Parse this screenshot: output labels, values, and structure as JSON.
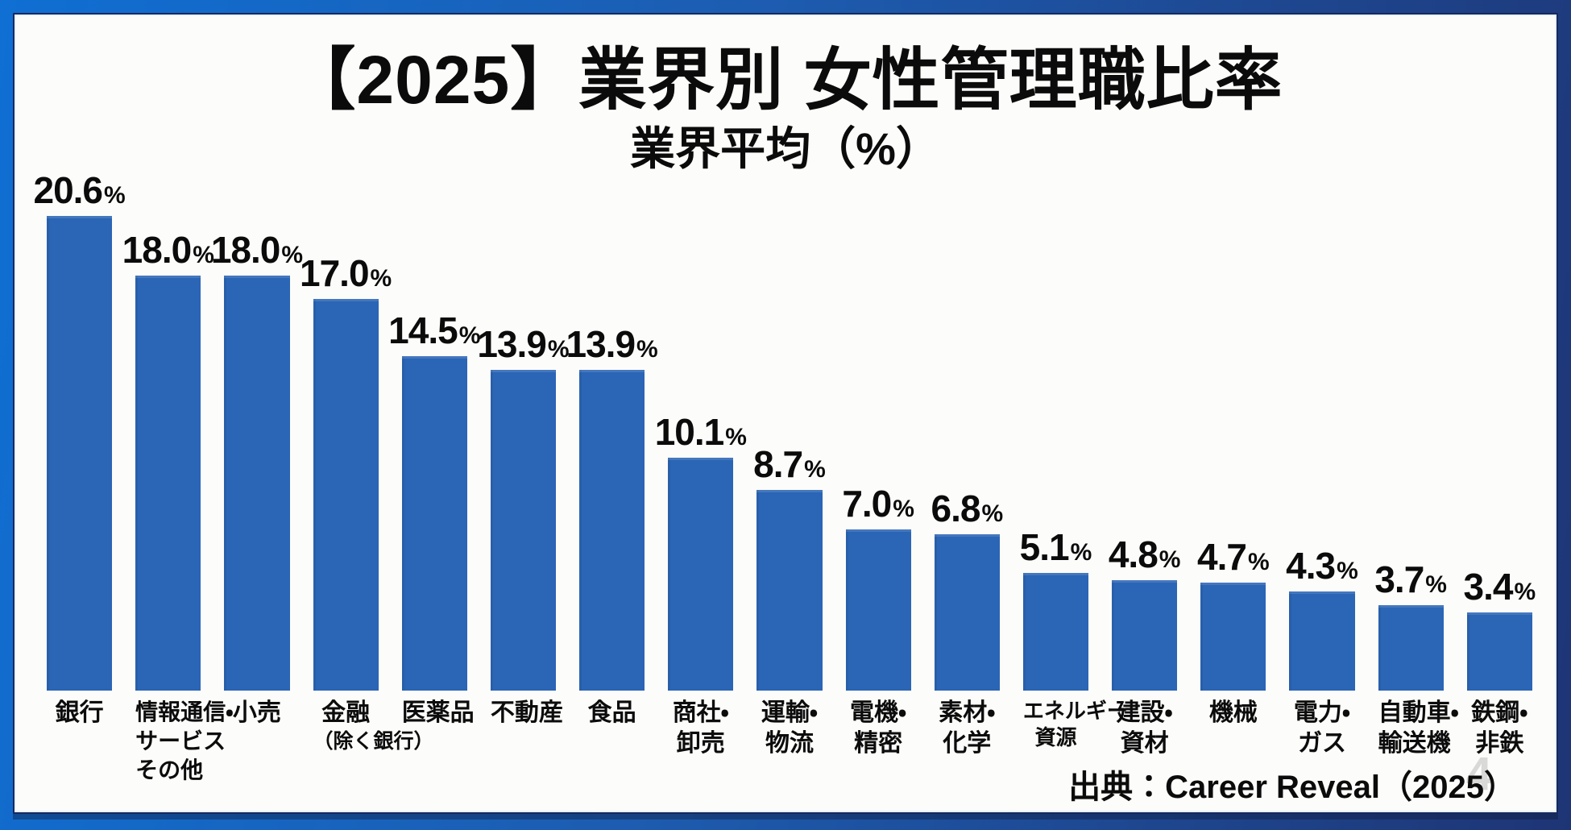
{
  "title": "【2025】業界別 女性管理職比率",
  "subtitle": "業界平均（%）",
  "source": "出典：Career Reveal（2025）",
  "watermark": "4",
  "colors": {
    "bar": "#2b65b5",
    "frame_left": "#0f6fd3",
    "frame_right": "#1e3575",
    "card_background": "#fcfcfa",
    "card_border": "#16295e",
    "text": "#0b0b0b"
  },
  "chart_data": {
    "type": "bar",
    "title": "【2025】業界別 女性管理職比率",
    "subtitle": "業界平均（%）",
    "unit": "%",
    "categories": [
      "銀行",
      "情報通信・\nサービス\nその他",
      "小売",
      "金融\n（除く銀行）",
      "医薬品",
      "不動産",
      "食品",
      "商社・\n卸売",
      "運輸・\n物流",
      "電機・\n精密",
      "素材・\n化学",
      "エネルギー\n資源",
      "建設・\n資材",
      "機械",
      "電力・\nガス",
      "自動車・\n輸送機",
      "鉄鋼・\n非鉄"
    ],
    "values": [
      20.6,
      18.0,
      18.0,
      17.0,
      14.5,
      13.9,
      13.9,
      10.1,
      8.7,
      7.0,
      6.8,
      5.1,
      4.8,
      4.7,
      4.3,
      3.7,
      3.4
    ],
    "value_labels": [
      "20.6",
      "18.0",
      "18.0",
      "17.0",
      "14.5",
      "13.9",
      "13.9",
      "10.1",
      "8.7",
      "7.0",
      "6.8",
      "5.1",
      "4.8",
      "4.7",
      "4.3",
      "3.7",
      "3.4"
    ],
    "ylim": [
      0,
      21
    ],
    "grid": false,
    "legend": false,
    "bar_color": "#2b65b5",
    "value_label_position": "above-bar",
    "sorted": "descending"
  }
}
